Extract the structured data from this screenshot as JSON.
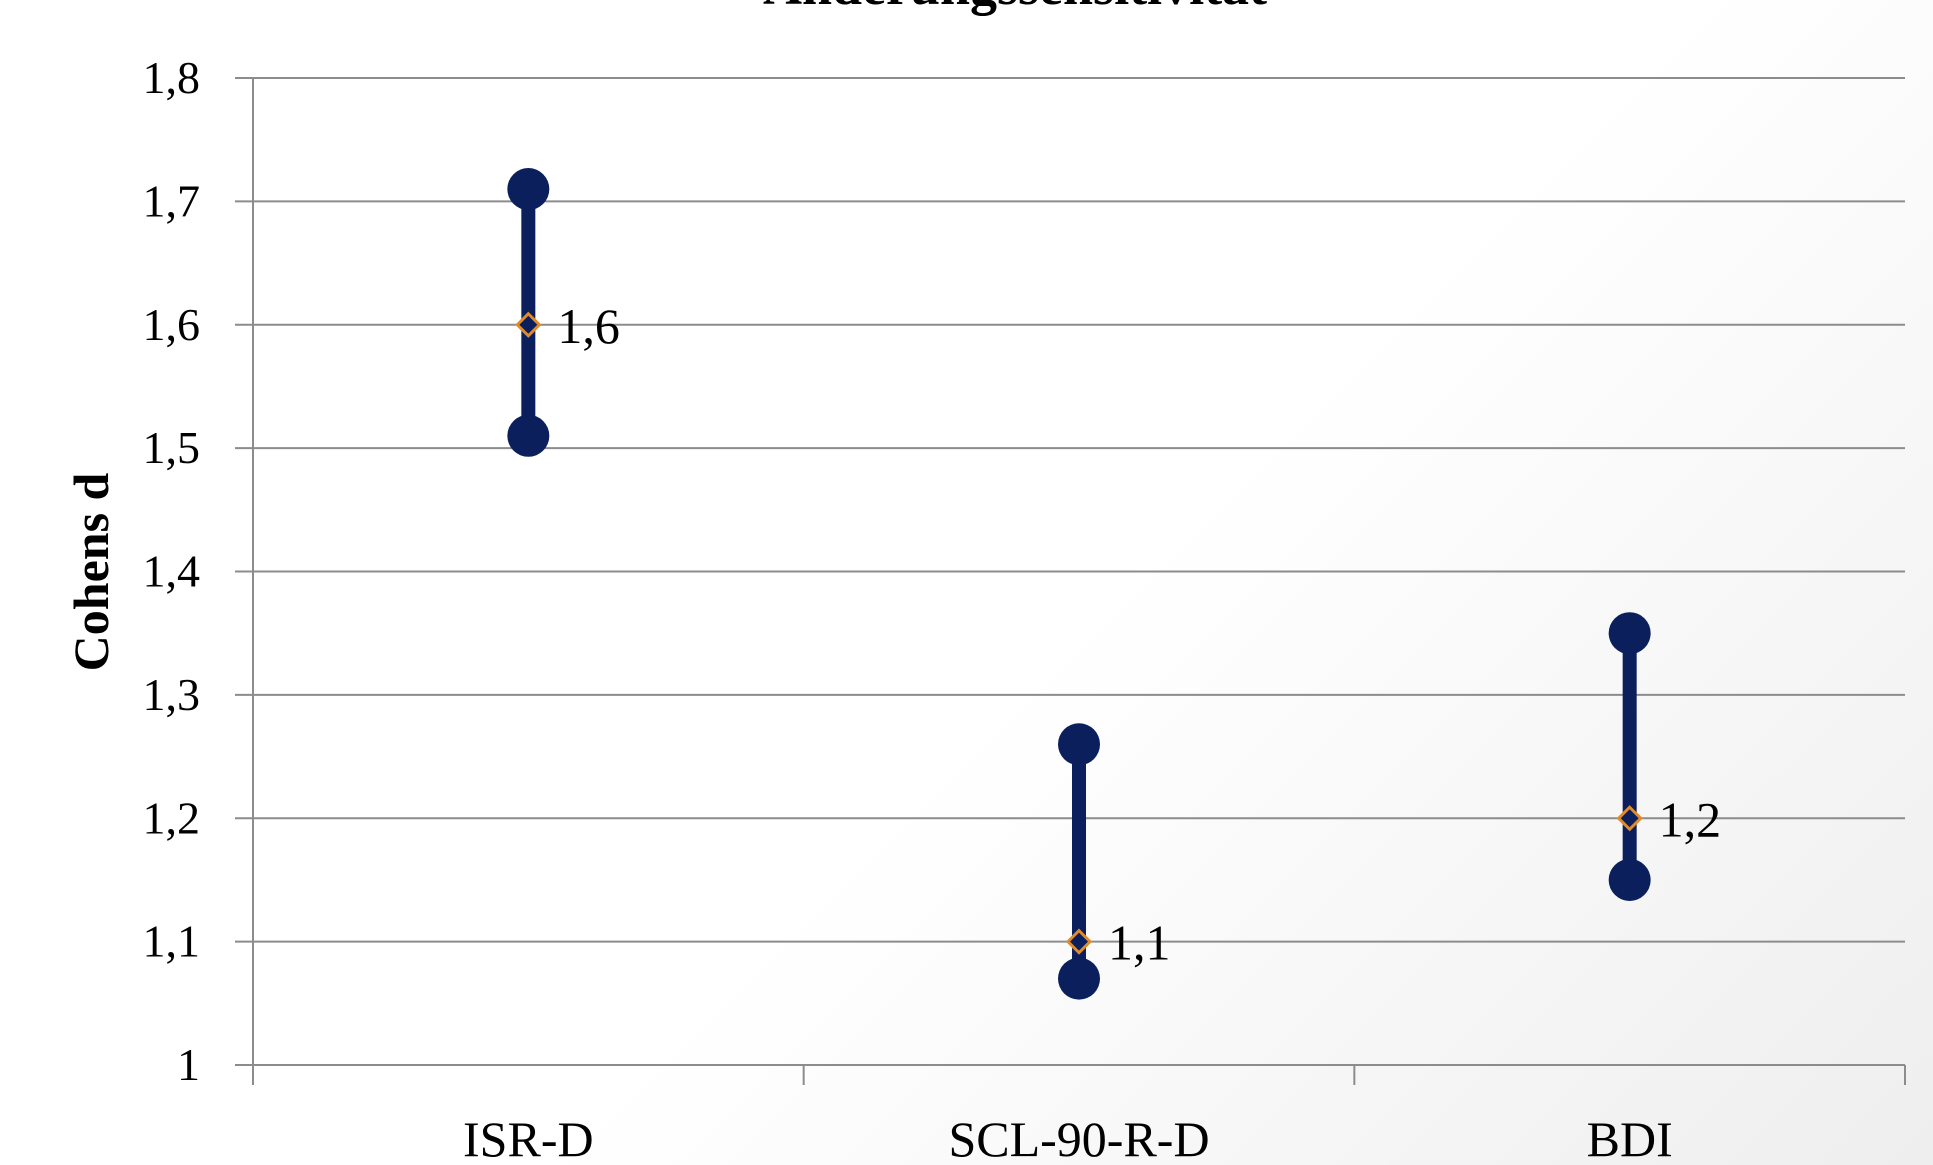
{
  "chart_data": {
    "type": "range",
    "title": "Änderungssensitivität",
    "xlabel": "",
    "ylabel": "Cohens d",
    "ylim": [
      1.0,
      1.8
    ],
    "yticks": [
      1.0,
      1.1,
      1.2,
      1.3,
      1.4,
      1.5,
      1.6,
      1.7,
      1.8
    ],
    "ytick_labels": [
      "1",
      "1,1",
      "1,2",
      "1,3",
      "1,4",
      "1,5",
      "1,6",
      "1,7",
      "1,8"
    ],
    "categories": [
      "ISR-D",
      "SCL-90-R-D",
      "BDI"
    ],
    "low": [
      1.51,
      1.07,
      1.15
    ],
    "high": [
      1.71,
      1.26,
      1.35
    ],
    "mid": [
      1.6,
      1.1,
      1.2
    ],
    "mid_labels": [
      "1,6",
      "1,1",
      "1,2"
    ],
    "grid": true,
    "colors": {
      "range": "#0a1f5c",
      "marker_fill": "#0a1f5c",
      "marker_edge": "#e08a2a",
      "grid": "#8c8c8c"
    }
  }
}
